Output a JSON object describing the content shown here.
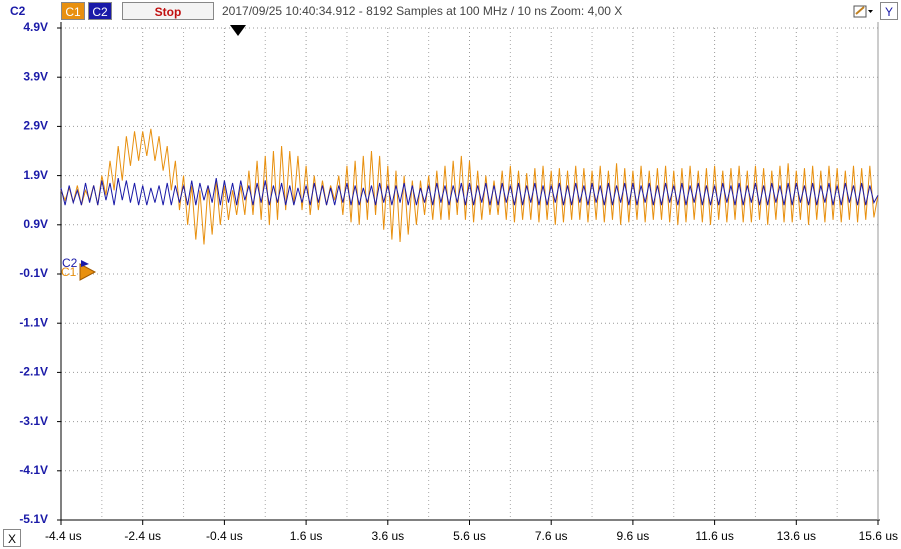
{
  "toolbar": {
    "axis_label": "C2",
    "channel_1": "C1",
    "channel_2": "C2",
    "stop": "Stop",
    "info": "2017/09/25 10:40:34.912 - 8192 Samples at 100 MHz / 10 ns Zoom: 4,00 X",
    "y_button": "Y"
  },
  "x_button": "X",
  "chart_data": {
    "type": "line",
    "x": [
      -4.4,
      -4.3,
      -4.2,
      -4.1,
      -4,
      -3.9,
      -3.8,
      -3.7,
      -3.6,
      -3.5,
      -3.4,
      -3.3,
      -3.2,
      -3.1,
      -3,
      -2.9,
      -2.8,
      -2.7,
      -2.6,
      -2.5,
      -2.4,
      -2.3,
      -2.2,
      -2.1,
      -2,
      -1.9,
      -1.8,
      -1.7,
      -1.6,
      -1.5,
      -1.4,
      -1.3,
      -1.2,
      -1.1,
      -1,
      -0.9,
      -0.8,
      -0.7,
      -0.6,
      -0.5,
      -0.4,
      -0.3,
      -0.2,
      -0.1,
      0,
      0.1,
      0.2,
      0.3,
      0.4,
      0.5,
      0.6,
      0.7,
      0.8,
      0.9,
      1,
      1.1,
      1.2,
      1.3,
      1.4,
      1.5,
      1.6,
      1.7,
      1.8,
      1.9,
      2,
      2.1,
      2.2,
      2.3,
      2.4,
      2.5,
      2.6,
      2.7,
      2.8,
      2.9,
      3,
      3.1,
      3.2,
      3.3,
      3.4,
      3.5,
      3.6,
      3.7,
      3.8,
      3.9,
      4,
      4.1,
      4.2,
      4.3,
      4.4,
      4.5,
      4.6,
      4.7,
      4.8,
      4.9,
      5,
      5.1,
      5.2,
      5.3,
      5.4,
      5.5,
      5.6,
      5.7,
      5.8,
      5.9,
      6,
      6.1,
      6.2,
      6.3,
      6.4,
      6.5,
      6.6,
      6.7,
      6.8,
      6.9,
      7,
      7.1,
      7.2,
      7.3,
      7.4,
      7.5,
      7.6,
      7.7,
      7.8,
      7.9,
      8,
      8.1,
      8.2,
      8.3,
      8.4,
      8.5,
      8.6,
      8.7,
      8.8,
      8.9,
      9,
      9.1,
      9.2,
      9.3,
      9.4,
      9.5,
      9.6,
      9.7,
      9.8,
      9.9,
      10,
      10.1,
      10.2,
      10.3,
      10.4,
      10.5,
      10.6,
      10.7,
      10.8,
      10.9,
      11,
      11.1,
      11.2,
      11.3,
      11.4,
      11.5,
      11.6,
      11.7,
      11.8,
      11.9,
      12,
      12.1,
      12.2,
      12.3,
      12.4,
      12.5,
      12.6,
      12.7,
      12.8,
      12.9,
      13,
      13.1,
      13.2,
      13.3,
      13.4,
      13.5,
      13.6,
      13.7,
      13.8,
      13.9,
      14,
      14.1,
      14.2,
      14.3,
      14.4,
      14.5,
      14.6,
      14.7,
      14.8,
      14.9,
      15,
      15.1,
      15.2,
      15.3,
      15.4,
      15.5,
      15.6
    ],
    "series": [
      {
        "name": "C1",
        "color": "#e8900f",
        "values": [
          1.6,
          1.4,
          1.65,
          1.35,
          1.7,
          1.3,
          1.6,
          1.4,
          1.7,
          1.3,
          1.9,
          1.5,
          2.2,
          1.6,
          2.5,
          1.8,
          2.7,
          2.1,
          2.8,
          2.2,
          2.8,
          2.3,
          2.85,
          2.2,
          2.7,
          2,
          2.5,
          1.6,
          2.2,
          1.2,
          1.9,
          0.9,
          1.7,
          0.6,
          1.6,
          0.5,
          1.7,
          0.7,
          1.8,
          0.9,
          1.7,
          1,
          1.6,
          1.1,
          1.7,
          1.1,
          2,
          1.1,
          2.2,
          1,
          2.3,
          0.9,
          2.4,
          1,
          2.5,
          1.2,
          2.4,
          1.3,
          2.3,
          1.2,
          2.1,
          1.1,
          1.9,
          1.2,
          1.8,
          1.3,
          1.7,
          1.4,
          1.9,
          1.1,
          2.1,
          0.95,
          2.2,
          0.9,
          2.3,
          1,
          2.4,
          1.1,
          2.3,
          0.8,
          2.1,
          0.6,
          2,
          0.55,
          1.9,
          0.7,
          1.8,
          0.9,
          1.8,
          1.1,
          1.9,
          1,
          2,
          1,
          2.1,
          1,
          2.2,
          1.1,
          2.3,
          1,
          2.2,
          0.95,
          2,
          1,
          1.9,
          1.1,
          1.8,
          1.1,
          2,
          1,
          2.1,
          0.95,
          2,
          1,
          1.95,
          1,
          2.05,
          0.95,
          2.1,
          1,
          2,
          0.9,
          2.05,
          0.95,
          2,
          1,
          2.1,
          1,
          2.05,
          0.95,
          2,
          1,
          2.1,
          0.95,
          2,
          1,
          2.15,
          0.9,
          2.05,
          0.95,
          2,
          1,
          2.1,
          0.95,
          2,
          1,
          2.05,
          1,
          2.1,
          0.95,
          2,
          0.9,
          2.05,
          0.95,
          2.1,
          1,
          2,
          0.95,
          2.05,
          0.9,
          2.1,
          1,
          2,
          0.95,
          2.05,
          1,
          2.1,
          0.95,
          2,
          0.95,
          2.1,
          1,
          2.05,
          0.9,
          2,
          1,
          2.1,
          0.95,
          2.15,
          0.95,
          2,
          1,
          2.05,
          0.9,
          2.1,
          1,
          2,
          0.95,
          2.1,
          1,
          2.05,
          0.95,
          2,
          1,
          2.1,
          0.95,
          2.05,
          1,
          2.1,
          1.05,
          1.5
        ]
      },
      {
        "name": "C2",
        "color": "#1a1aa8",
        "values": [
          1.65,
          1.3,
          1.7,
          1.35,
          1.6,
          1.3,
          1.75,
          1.35,
          1.7,
          1.3,
          1.8,
          1.4,
          1.75,
          1.3,
          1.85,
          1.4,
          1.8,
          1.35,
          1.75,
          1.3,
          1.7,
          1.3,
          1.65,
          1.35,
          1.7,
          1.3,
          1.75,
          1.3,
          1.7,
          1.35,
          1.7,
          1.3,
          1.8,
          1.3,
          1.75,
          1.4,
          1.7,
          1.35,
          1.85,
          1.3,
          1.8,
          1.35,
          1.75,
          1.3,
          1.8,
          1.4,
          1.7,
          1.3,
          1.75,
          1.35,
          1.8,
          1.3,
          1.7,
          1.35,
          1.75,
          1.3,
          1.7,
          1.3,
          1.65,
          1.35,
          1.7,
          1.3,
          1.75,
          1.35,
          1.7,
          1.3,
          1.65,
          1.3,
          1.7,
          1.35,
          1.75,
          1.3,
          1.7,
          1.3,
          1.65,
          1.35,
          1.7,
          1.3,
          1.75,
          1.35,
          1.7,
          1.3,
          1.7,
          1.35,
          1.75,
          1.3,
          1.7,
          1.3,
          1.65,
          1.35,
          1.7,
          1.3,
          1.75,
          1.35,
          1.7,
          1.3,
          1.7,
          1.35,
          1.75,
          1.3,
          1.75,
          1.3,
          1.7,
          1.35,
          1.75,
          1.3,
          1.7,
          1.3,
          1.75,
          1.35,
          1.7,
          1.3,
          1.75,
          1.3,
          1.7,
          1.35,
          1.75,
          1.3,
          1.7,
          1.3,
          1.7,
          1.35,
          1.75,
          1.3,
          1.7,
          1.3,
          1.75,
          1.35,
          1.7,
          1.3,
          1.75,
          1.35,
          1.7,
          1.3,
          1.75,
          1.3,
          1.7,
          1.35,
          1.75,
          1.3,
          1.75,
          1.3,
          1.7,
          1.35,
          1.75,
          1.3,
          1.7,
          1.3,
          1.75,
          1.35,
          1.7,
          1.3,
          1.75,
          1.3,
          1.7,
          1.35,
          1.75,
          1.3,
          1.7,
          1.3,
          1.7,
          1.3,
          1.75,
          1.35,
          1.7,
          1.3,
          1.75,
          1.3,
          1.7,
          1.35,
          1.75,
          1.3,
          1.7,
          1.3,
          1.75,
          1.35,
          1.7,
          1.3,
          1.75,
          1.3,
          1.75,
          1.35,
          1.7,
          1.3,
          1.75,
          1.3,
          1.7,
          1.35,
          1.75,
          1.3,
          1.7,
          1.3,
          1.75,
          1.35,
          1.7,
          1.3,
          1.75,
          1.3,
          1.7,
          1.35,
          1.5
        ]
      }
    ],
    "xlim": [
      -4.4,
      15.6
    ],
    "ylim": [
      -5.1,
      4.9
    ],
    "xticks": [
      {
        "value": -4.4,
        "label": "-4.4 us"
      },
      {
        "value": -2.4,
        "label": "-2.4 us"
      },
      {
        "value": -0.4,
        "label": "-0.4 us"
      },
      {
        "value": 1.6,
        "label": "1.6 us"
      },
      {
        "value": 3.6,
        "label": "3.6 us"
      },
      {
        "value": 5.6,
        "label": "5.6 us"
      },
      {
        "value": 7.6,
        "label": "7.6 us"
      },
      {
        "value": 9.6,
        "label": "9.6 us"
      },
      {
        "value": 11.6,
        "label": "11.6 us"
      },
      {
        "value": 13.6,
        "label": "13.6 us"
      },
      {
        "value": 15.6,
        "label": "15.6 us"
      }
    ],
    "yticks": [
      {
        "value": 4.9,
        "label": "4.9V"
      },
      {
        "value": 3.9,
        "label": "3.9V"
      },
      {
        "value": 2.9,
        "label": "2.9V"
      },
      {
        "value": 1.9,
        "label": "1.9V"
      },
      {
        "value": 0.9,
        "label": "0.9V"
      },
      {
        "value": -0.1,
        "label": "-0.1V"
      },
      {
        "value": -1.1,
        "label": "-1.1V"
      },
      {
        "value": -2.1,
        "label": "-2.1V"
      },
      {
        "value": -3.1,
        "label": "-3.1V"
      },
      {
        "value": -4.1,
        "label": "-4.1V"
      },
      {
        "value": -5.1,
        "label": "-5.1V"
      }
    ],
    "grid": true
  }
}
